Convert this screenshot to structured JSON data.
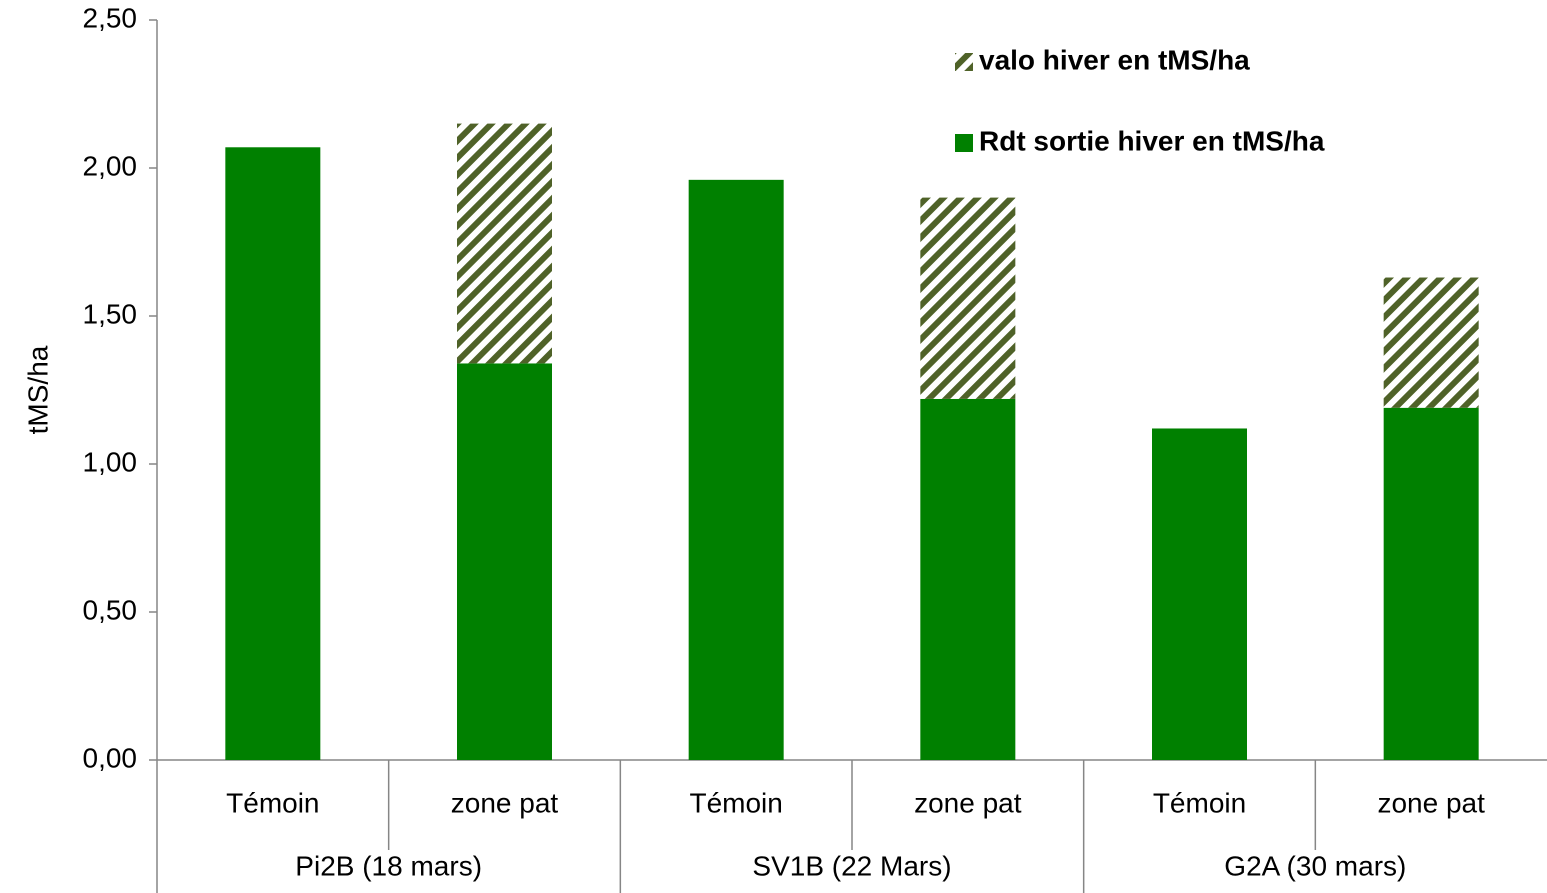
{
  "chart_data": {
    "type": "stacked_bar",
    "y_label": "tMS/ha",
    "categories": [
      "Témoin",
      "zone pat",
      "Témoin",
      "zone pat",
      "Témoin",
      "zone pat"
    ],
    "groups": [
      "Pi2B (18 mars)",
      "SV1B (22 Mars)",
      "G2A (30 mars)"
    ],
    "series": [
      {
        "name": "Rdt sortie hiver en tMS/ha",
        "color": "#008000",
        "values": [
          2.07,
          1.34,
          1.96,
          1.22,
          1.12,
          1.19
        ]
      },
      {
        "name": "valo hiver en tMS/ha",
        "color": "#4f6228",
        "pattern": "hatch",
        "values": [
          null,
          0.81,
          null,
          0.68,
          null,
          0.44
        ]
      }
    ],
    "ylim": [
      0,
      2.5
    ],
    "yticks": [
      {
        "value": 0,
        "label": "0,00"
      },
      {
        "value": 0.5,
        "label": "0,50"
      },
      {
        "value": 1,
        "label": "1,00"
      },
      {
        "value": 1.5,
        "label": "1,50"
      },
      {
        "value": 2,
        "label": "2,00"
      },
      {
        "value": 2.5,
        "label": "2,50"
      }
    ],
    "legend": "upper right",
    "grid": false
  }
}
